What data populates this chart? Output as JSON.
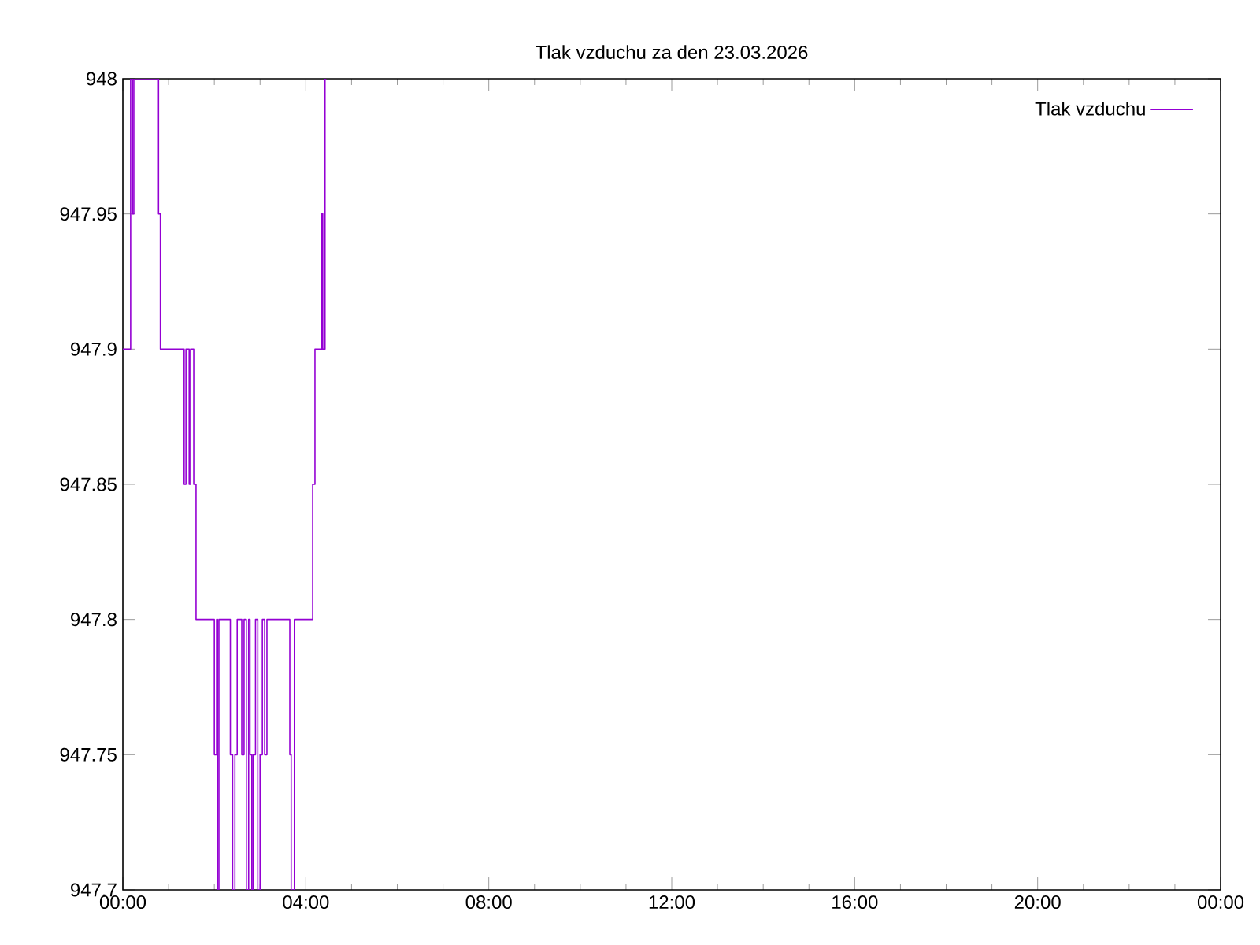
{
  "chart_data": {
    "type": "step",
    "title": "Tlak vzduchu za den 23.03.2026",
    "x": [
      0.0,
      0.17,
      0.21,
      0.24,
      0.78,
      0.82,
      1.34,
      1.38,
      1.45,
      1.48,
      1.55,
      1.6,
      2.0,
      2.05,
      2.07,
      2.1,
      2.35,
      2.4,
      2.45,
      2.5,
      2.6,
      2.65,
      2.7,
      2.75,
      2.78,
      2.82,
      2.85,
      2.9,
      2.95,
      3.0,
      3.05,
      3.1,
      3.15,
      3.65,
      3.68,
      3.75,
      4.15,
      4.2,
      4.35,
      4.37,
      4.42,
      4.45
    ],
    "series": [
      {
        "name": "Tlak vzduchu",
        "color": "#9400d3",
        "values": [
          947.9,
          948,
          947.95,
          948,
          947.95,
          947.9,
          947.85,
          947.9,
          947.85,
          947.9,
          947.85,
          947.8,
          947.75,
          947.8,
          947.7,
          947.8,
          947.75,
          947.7,
          947.75,
          947.8,
          947.75,
          947.8,
          947.7,
          947.8,
          947.75,
          947.7,
          947.75,
          947.8,
          947.7,
          947.75,
          947.8,
          947.75,
          947.8,
          947.75,
          947.7,
          947.8,
          947.85,
          947.9,
          947.95,
          947.9,
          948,
          948
        ]
      }
    ],
    "xlim": [
      0,
      24
    ],
    "xticks": [
      {
        "value": 0,
        "label": "00:00"
      },
      {
        "value": 4,
        "label": "04:00"
      },
      {
        "value": 8,
        "label": "08:00"
      },
      {
        "value": 12,
        "label": "12:00"
      },
      {
        "value": 16,
        "label": "16:00"
      },
      {
        "value": 20,
        "label": "20:00"
      },
      {
        "value": 24,
        "label": "00:00"
      }
    ],
    "ylim": [
      947.7,
      948
    ],
    "yticks": [
      947.7,
      947.75,
      947.8,
      947.85,
      947.9,
      947.95,
      948
    ],
    "legend": "top right"
  }
}
